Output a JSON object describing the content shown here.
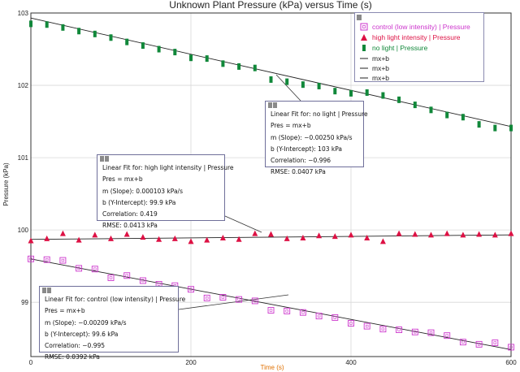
{
  "chart_data": {
    "type": "scatter",
    "title": "Unknown Plant Pressure (kPa) versus Time (s)",
    "xlabel": "Time (s)",
    "ylabel": "Pressure (kPa)",
    "xlim": [
      0,
      600
    ],
    "ylim": [
      98.25,
      103
    ],
    "x_ticks": [
      0,
      200,
      400,
      600
    ],
    "y_ticks": [
      99,
      100,
      101,
      102,
      103
    ],
    "grid": true,
    "legend_position": "top-right",
    "series": [
      {
        "name": "control (low intensity) | Pressure",
        "color": "#cc33cc",
        "marker": "open-square",
        "x": [
          0,
          20,
          40,
          60,
          80,
          100,
          120,
          140,
          160,
          180,
          200,
          220,
          240,
          260,
          280,
          300,
          320,
          340,
          360,
          380,
          400,
          420,
          440,
          460,
          480,
          500,
          520,
          540,
          560,
          580,
          600
        ],
        "values": [
          99.6,
          99.59,
          99.58,
          99.47,
          99.46,
          99.34,
          99.37,
          99.3,
          99.25,
          99.23,
          99.18,
          99.06,
          99.07,
          99.04,
          99.02,
          98.89,
          98.88,
          98.86,
          98.81,
          98.79,
          98.71,
          98.67,
          98.63,
          98.62,
          98.59,
          98.58,
          98.54,
          98.45,
          98.42,
          98.44,
          98.38
        ]
      },
      {
        "name": "high light intensity | Pressure",
        "color": "#dd1144",
        "marker": "triangle",
        "x": [
          0,
          20,
          40,
          60,
          80,
          100,
          120,
          140,
          160,
          180,
          200,
          220,
          240,
          260,
          280,
          300,
          320,
          340,
          360,
          380,
          400,
          420,
          440,
          460,
          480,
          500,
          520,
          540,
          560,
          580,
          600
        ],
        "values": [
          99.85,
          99.88,
          99.95,
          99.86,
          99.93,
          99.88,
          99.94,
          99.9,
          99.87,
          99.88,
          99.84,
          99.86,
          99.89,
          99.87,
          99.95,
          99.94,
          99.88,
          99.89,
          99.92,
          99.91,
          99.93,
          99.89,
          99.84,
          99.95,
          99.94,
          99.93,
          99.95,
          99.93,
          99.94,
          99.93,
          99.95
        ]
      },
      {
        "name": "no light | Pressure",
        "color": "#11883a",
        "marker": "filled-bar",
        "x": [
          0,
          20,
          40,
          60,
          80,
          100,
          120,
          140,
          160,
          180,
          200,
          220,
          240,
          260,
          280,
          300,
          320,
          340,
          360,
          380,
          400,
          420,
          440,
          460,
          480,
          500,
          520,
          540,
          560,
          580,
          600
        ],
        "values": [
          102.85,
          102.84,
          102.8,
          102.75,
          102.71,
          102.66,
          102.6,
          102.55,
          102.5,
          102.46,
          102.38,
          102.37,
          102.3,
          102.26,
          102.24,
          102.08,
          102.05,
          102.01,
          101.99,
          101.92,
          101.89,
          101.9,
          101.86,
          101.8,
          101.73,
          101.66,
          101.59,
          101.56,
          101.46,
          101.41,
          101.41
        ]
      }
    ],
    "fits": [
      {
        "series": "no light | Pressure",
        "title": "Linear Fit for: no light | Pressure",
        "equation": "Pres = mx+b",
        "slope_text": "m (Slope): −0.00250 kPa/s",
        "intercept_text": "b (Y-Intercept): 103 kPa",
        "correlation_text": "Correlation: −0.996",
        "rmse_text": "RMSE: 0.0407 kPa",
        "slope": -0.0025,
        "intercept": 102.93,
        "legend_label": "mx+b"
      },
      {
        "series": "high light intensity | Pressure",
        "title": "Linear Fit for: high light intensity | Pressure",
        "equation": "Pres = mx+b",
        "slope_text": "m (Slope): 0.000103 kPa/s",
        "intercept_text": "b (Y-Intercept): 99.9 kPa",
        "correlation_text": "Correlation: 0.419",
        "rmse_text": "RMSE: 0.0413 kPa",
        "slope": 0.000103,
        "intercept": 99.87,
        "legend_label": "mx+b"
      },
      {
        "series": "control (low intensity) | Pressure",
        "title": "Linear Fit for: control (low intensity) | Pressure",
        "equation": "Pres = mx+b",
        "slope_text": "m (Slope): −0.00209 kPa/s",
        "intercept_text": "b (Y-Intercept): 99.6 kPa",
        "correlation_text": "Correlation: −0.995",
        "rmse_text": "RMSE: 0.0392 kPa",
        "slope": -0.00209,
        "intercept": 99.6,
        "legend_label": "mx+b"
      }
    ]
  }
}
